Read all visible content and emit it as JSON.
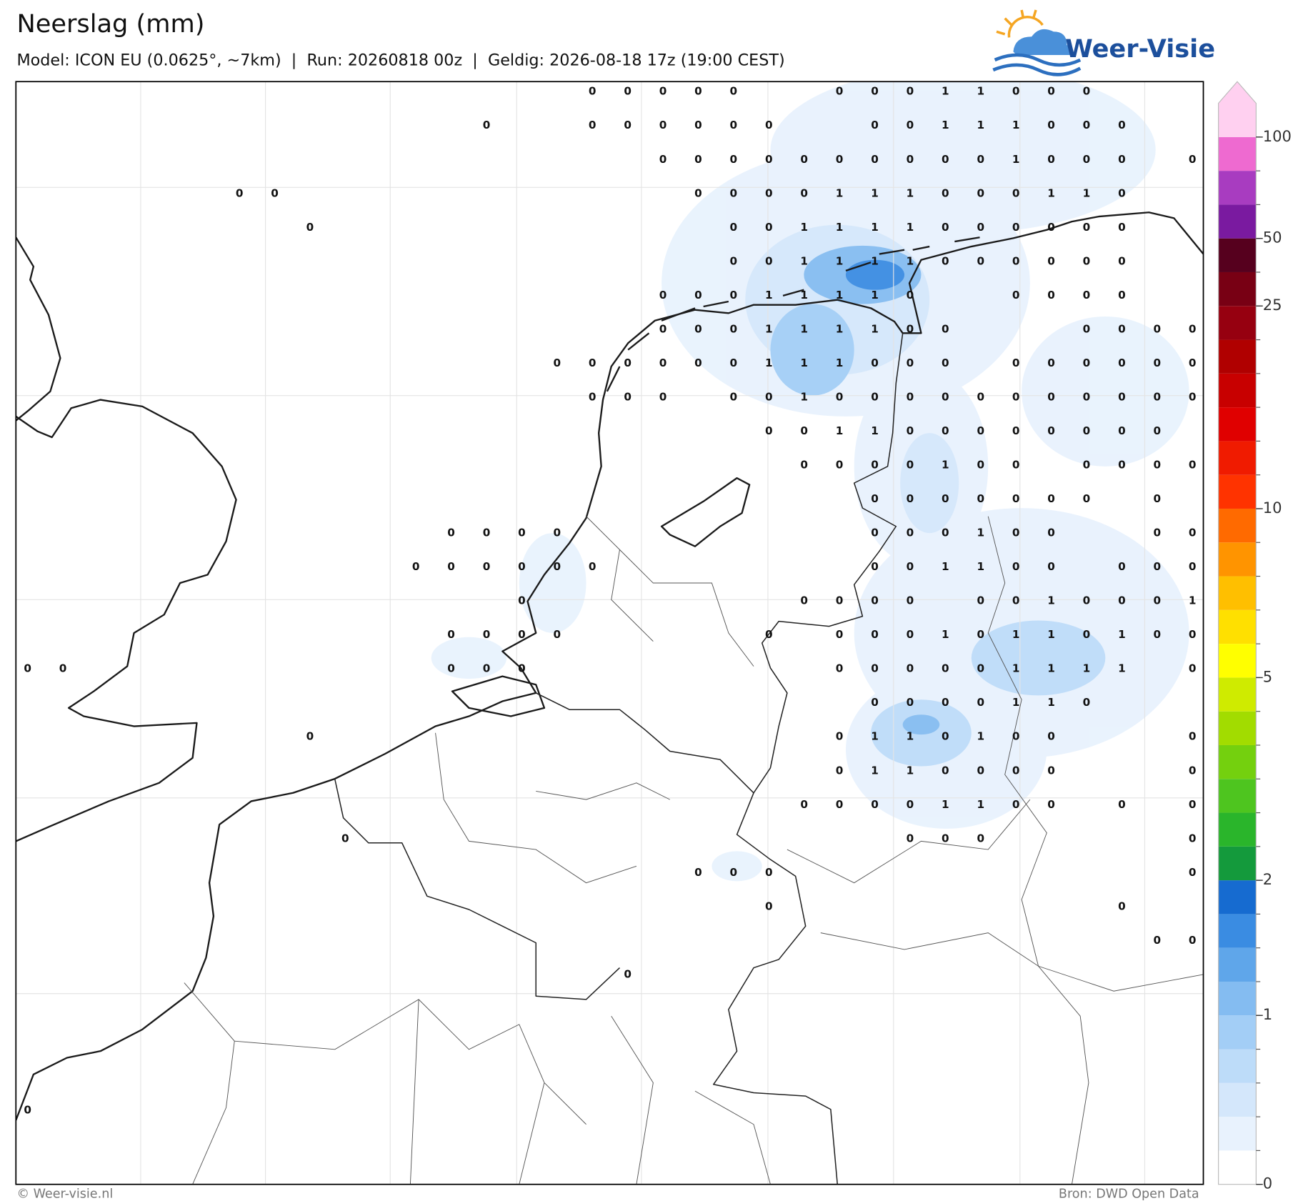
{
  "header": {
    "title": "Neerslag (mm)",
    "subtitle": "Model: ICON EU (0.0625°, ~7km)  |  Run: 20260818 00z  |  Geldig: 2026-08-18 17z (19:00 CEST)",
    "logo": "Weer-Visie"
  },
  "map": {
    "grid_values": [
      [
        null,
        null,
        null,
        null,
        null,
        null,
        null,
        null,
        null,
        null,
        null,
        null,
        null,
        null,
        null,
        null,
        0,
        0,
        0,
        0,
        0,
        null,
        null,
        0,
        0,
        0,
        1,
        1,
        0,
        0,
        0,
        null,
        null,
        null
      ],
      [
        null,
        null,
        null,
        null,
        null,
        null,
        null,
        null,
        null,
        null,
        null,
        null,
        null,
        0,
        null,
        null,
        0,
        0,
        0,
        0,
        0,
        0,
        null,
        null,
        0,
        0,
        1,
        1,
        1,
        0,
        0,
        0,
        null,
        null
      ],
      [
        null,
        null,
        null,
        null,
        null,
        null,
        null,
        null,
        null,
        null,
        null,
        null,
        null,
        null,
        null,
        null,
        null,
        null,
        0,
        0,
        0,
        0,
        0,
        0,
        0,
        0,
        0,
        0,
        1,
        0,
        0,
        0,
        null,
        0
      ],
      [
        null,
        null,
        null,
        null,
        null,
        null,
        0,
        0,
        null,
        null,
        null,
        null,
        null,
        null,
        null,
        null,
        null,
        null,
        null,
        0,
        0,
        0,
        0,
        1,
        1,
        1,
        0,
        0,
        0,
        1,
        1,
        0,
        null,
        null
      ],
      [
        null,
        null,
        null,
        null,
        null,
        null,
        null,
        null,
        0,
        null,
        null,
        null,
        null,
        null,
        null,
        null,
        null,
        null,
        null,
        null,
        0,
        0,
        1,
        1,
        1,
        1,
        0,
        0,
        0,
        0,
        0,
        0,
        null,
        null
      ],
      [
        null,
        null,
        null,
        null,
        null,
        null,
        null,
        null,
        null,
        null,
        null,
        null,
        null,
        null,
        null,
        null,
        null,
        null,
        null,
        null,
        0,
        0,
        1,
        1,
        1,
        1,
        0,
        0,
        0,
        0,
        0,
        0,
        null,
        null
      ],
      [
        null,
        null,
        null,
        null,
        null,
        null,
        null,
        null,
        null,
        null,
        null,
        null,
        null,
        null,
        null,
        null,
        null,
        null,
        0,
        0,
        0,
        1,
        1,
        1,
        1,
        0,
        null,
        null,
        0,
        0,
        0,
        0,
        null,
        null
      ],
      [
        null,
        null,
        null,
        null,
        null,
        null,
        null,
        null,
        null,
        null,
        null,
        null,
        null,
        null,
        null,
        null,
        null,
        null,
        0,
        0,
        0,
        1,
        1,
        1,
        1,
        0,
        0,
        null,
        null,
        null,
        0,
        0,
        0,
        0
      ],
      [
        null,
        null,
        null,
        null,
        null,
        null,
        null,
        null,
        null,
        null,
        null,
        null,
        null,
        null,
        null,
        0,
        0,
        0,
        0,
        0,
        0,
        1,
        1,
        1,
        0,
        0,
        0,
        null,
        0,
        0,
        0,
        0,
        0,
        0
      ],
      [
        null,
        null,
        null,
        null,
        null,
        null,
        null,
        null,
        null,
        null,
        null,
        null,
        null,
        null,
        null,
        null,
        0,
        0,
        0,
        null,
        0,
        0,
        1,
        0,
        0,
        0,
        0,
        0,
        0,
        0,
        0,
        0,
        0,
        0
      ],
      [
        null,
        null,
        null,
        null,
        null,
        null,
        null,
        null,
        null,
        null,
        null,
        null,
        null,
        null,
        null,
        null,
        null,
        null,
        null,
        null,
        null,
        0,
        0,
        1,
        1,
        0,
        0,
        0,
        0,
        0,
        0,
        0,
        0,
        null
      ],
      [
        null,
        null,
        null,
        null,
        null,
        null,
        null,
        null,
        null,
        null,
        null,
        null,
        null,
        null,
        null,
        null,
        null,
        null,
        null,
        null,
        null,
        null,
        0,
        0,
        0,
        0,
        1,
        0,
        0,
        null,
        0,
        0,
        0,
        0
      ],
      [
        null,
        null,
        null,
        null,
        null,
        null,
        null,
        null,
        null,
        null,
        null,
        null,
        null,
        null,
        null,
        null,
        null,
        null,
        null,
        null,
        null,
        null,
        null,
        null,
        0,
        0,
        0,
        0,
        0,
        0,
        0,
        null,
        0,
        null
      ],
      [
        null,
        null,
        null,
        null,
        null,
        null,
        null,
        null,
        null,
        null,
        null,
        null,
        0,
        0,
        0,
        0,
        null,
        null,
        null,
        null,
        null,
        null,
        null,
        null,
        0,
        0,
        0,
        1,
        0,
        0,
        null,
        null,
        0,
        0
      ],
      [
        null,
        null,
        null,
        null,
        null,
        null,
        null,
        null,
        null,
        null,
        null,
        0,
        0,
        0,
        0,
        0,
        0,
        null,
        null,
        null,
        null,
        null,
        null,
        null,
        0,
        0,
        1,
        1,
        0,
        0,
        null,
        0,
        0,
        0
      ],
      [
        null,
        null,
        null,
        null,
        null,
        null,
        null,
        null,
        null,
        null,
        null,
        null,
        null,
        null,
        0,
        null,
        null,
        null,
        null,
        null,
        null,
        null,
        0,
        0,
        0,
        0,
        null,
        0,
        0,
        1,
        0,
        0,
        0,
        1
      ],
      [
        null,
        null,
        null,
        null,
        null,
        null,
        null,
        null,
        null,
        null,
        null,
        null,
        0,
        0,
        0,
        0,
        null,
        null,
        null,
        null,
        null,
        0,
        null,
        0,
        0,
        0,
        1,
        0,
        1,
        1,
        0,
        1,
        0,
        0
      ],
      [
        0,
        0,
        null,
        null,
        null,
        null,
        null,
        null,
        null,
        null,
        null,
        null,
        0,
        0,
        0,
        null,
        null,
        null,
        null,
        null,
        null,
        null,
        null,
        0,
        0,
        0,
        0,
        0,
        1,
        1,
        1,
        1,
        null,
        0
      ],
      [
        null,
        null,
        null,
        null,
        null,
        null,
        null,
        null,
        null,
        null,
        null,
        null,
        null,
        null,
        null,
        null,
        null,
        null,
        null,
        null,
        null,
        null,
        null,
        null,
        0,
        0,
        0,
        0,
        1,
        1,
        0,
        null,
        null,
        null
      ],
      [
        null,
        null,
        null,
        null,
        null,
        null,
        null,
        null,
        0,
        null,
        null,
        null,
        null,
        null,
        null,
        null,
        null,
        null,
        null,
        null,
        null,
        null,
        null,
        0,
        1,
        1,
        0,
        1,
        0,
        0,
        null,
        null,
        null,
        0
      ],
      [
        null,
        null,
        null,
        null,
        null,
        null,
        null,
        null,
        null,
        null,
        null,
        null,
        null,
        null,
        null,
        null,
        null,
        null,
        null,
        null,
        null,
        null,
        null,
        0,
        1,
        1,
        0,
        0,
        0,
        0,
        null,
        null,
        null,
        0
      ],
      [
        null,
        null,
        null,
        null,
        null,
        null,
        null,
        null,
        null,
        null,
        null,
        null,
        null,
        null,
        null,
        null,
        null,
        null,
        null,
        null,
        null,
        null,
        0,
        0,
        0,
        0,
        1,
        1,
        0,
        0,
        null,
        0,
        null,
        0
      ],
      [
        null,
        null,
        null,
        null,
        null,
        null,
        null,
        null,
        null,
        0,
        null,
        null,
        null,
        null,
        null,
        null,
        null,
        null,
        null,
        null,
        null,
        null,
        null,
        null,
        null,
        0,
        0,
        0,
        null,
        null,
        null,
        null,
        null,
        0
      ],
      [
        null,
        null,
        null,
        null,
        null,
        null,
        null,
        null,
        null,
        null,
        null,
        null,
        null,
        null,
        null,
        null,
        null,
        null,
        null,
        0,
        0,
        0,
        null,
        null,
        null,
        null,
        null,
        null,
        null,
        null,
        null,
        null,
        null,
        0
      ],
      [
        null,
        null,
        null,
        null,
        null,
        null,
        null,
        null,
        null,
        null,
        null,
        null,
        null,
        null,
        null,
        null,
        null,
        null,
        null,
        null,
        null,
        0,
        null,
        null,
        null,
        null,
        null,
        null,
        null,
        null,
        null,
        0,
        null,
        null
      ],
      [
        null,
        null,
        null,
        null,
        null,
        null,
        null,
        null,
        null,
        null,
        null,
        null,
        null,
        null,
        null,
        null,
        null,
        null,
        null,
        null,
        null,
        null,
        null,
        null,
        null,
        null,
        null,
        null,
        null,
        null,
        null,
        null,
        0,
        0
      ],
      [
        null,
        null,
        null,
        null,
        null,
        null,
        null,
        null,
        null,
        null,
        null,
        null,
        null,
        null,
        null,
        null,
        null,
        0,
        null,
        null,
        null,
        null,
        null,
        null,
        null,
        null,
        null,
        null,
        null,
        null,
        null,
        null,
        null,
        null
      ],
      [
        null,
        null,
        null,
        null,
        null,
        null,
        null,
        null,
        null,
        null,
        null,
        null,
        null,
        null,
        null,
        null,
        null,
        null,
        null,
        null,
        null,
        null,
        null,
        null,
        null,
        null,
        null,
        null,
        null,
        null,
        null,
        null,
        null,
        null
      ],
      [
        null,
        null,
        null,
        null,
        null,
        null,
        null,
        null,
        null,
        null,
        null,
        null,
        null,
        null,
        null,
        null,
        null,
        null,
        null,
        null,
        null,
        null,
        null,
        null,
        null,
        null,
        null,
        null,
        null,
        null,
        null,
        null,
        null,
        null
      ],
      [
        null,
        null,
        null,
        null,
        null,
        null,
        null,
        null,
        null,
        null,
        null,
        null,
        null,
        null,
        null,
        null,
        null,
        null,
        null,
        null,
        null,
        null,
        null,
        null,
        null,
        null,
        null,
        null,
        null,
        null,
        null,
        null,
        null,
        null
      ],
      [
        0,
        null,
        null,
        null,
        null,
        null,
        null,
        null,
        null,
        null,
        null,
        null,
        null,
        null,
        null,
        null,
        null,
        null,
        null,
        null,
        null,
        null,
        null,
        null,
        null,
        null,
        null,
        null,
        null,
        null,
        null,
        null,
        null,
        null
      ]
    ]
  },
  "colorbar": {
    "levels": [
      0,
      0.1,
      0.25,
      0.5,
      0.75,
      1,
      1.25,
      1.5,
      1.75,
      2,
      2.5,
      3,
      3.5,
      4,
      4.5,
      5,
      6,
      7,
      8,
      9,
      10,
      12,
      14,
      16,
      18,
      20,
      25,
      40,
      50,
      60,
      80,
      100
    ],
    "colors": [
      "#ffffff",
      "#e8f2fd",
      "#d4e7fb",
      "#bddcf9",
      "#a3cef6",
      "#84bcf1",
      "#5fa6ea",
      "#3a8ce2",
      "#166bd0",
      "#149a3c",
      "#2ab52b",
      "#4ec51f",
      "#74d00e",
      "#a2dc00",
      "#cfeb00",
      "#ffff00",
      "#ffe000",
      "#ffbf00",
      "#ff9400",
      "#ff6a00",
      "#ff3300",
      "#f01b00",
      "#e00000",
      "#c80000",
      "#b00000",
      "#960010",
      "#780014",
      "#56001e",
      "#7a1aa0",
      "#a83cc0",
      "#ee6ad0",
      "#ffd0f0"
    ],
    "ticks": [
      0,
      1,
      2,
      5,
      10,
      25,
      50,
      100
    ]
  },
  "footer": {
    "left": "© Weer-visie.nl",
    "right": "Bron: DWD Open Data"
  }
}
